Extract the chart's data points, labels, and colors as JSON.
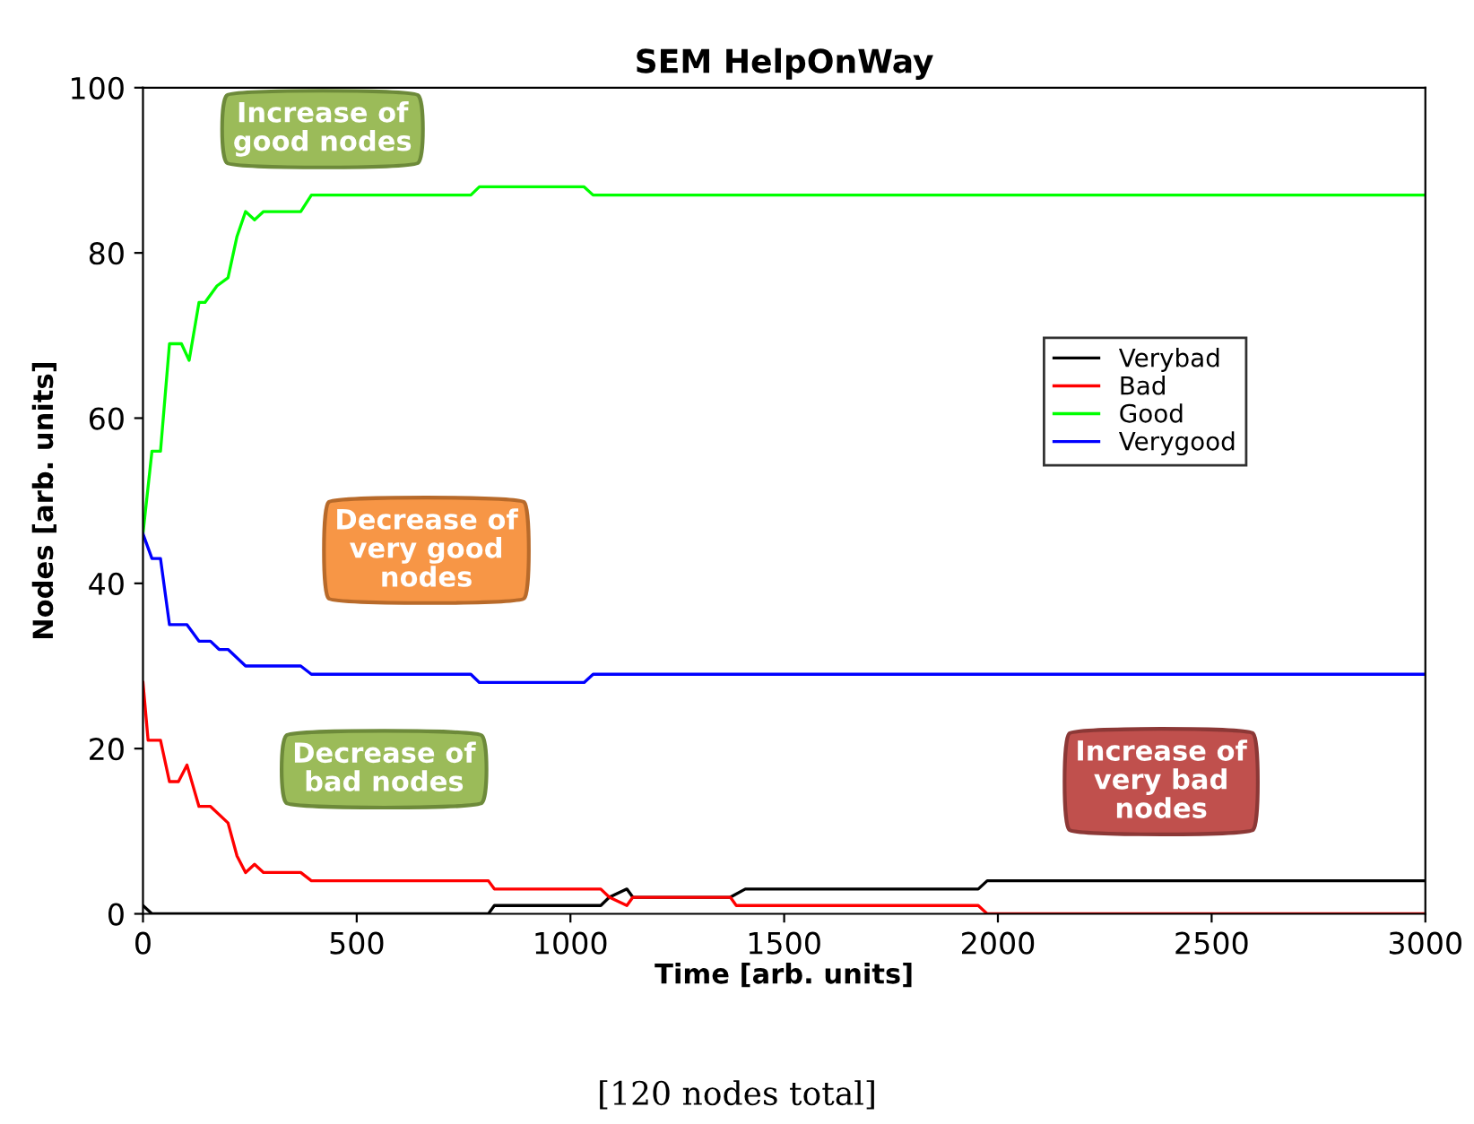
{
  "chart_data": {
    "type": "line",
    "title": "SEM HelpOnWay",
    "xlabel": "Time [arb. units]",
    "ylabel": "Nodes [arb. units]",
    "xlim": [
      0,
      3000
    ],
    "ylim": [
      0,
      100
    ],
    "xticks": [
      0,
      500,
      1000,
      1500,
      2000,
      2500,
      3000
    ],
    "yticks": [
      0,
      20,
      40,
      60,
      80,
      100
    ],
    "grid": false,
    "legend": "right",
    "marker": "none",
    "line_style": "solid",
    "series": [
      {
        "name": "Verybad",
        "color": "#000000",
        "x": [
          0,
          21,
          808,
          822,
          1071,
          1091,
          1132,
          1146,
          1374,
          1409,
          1954,
          1975,
          3000
        ],
        "values": [
          1,
          0,
          0,
          1,
          1,
          2,
          3,
          2,
          2,
          3,
          3,
          4,
          4
        ]
      },
      {
        "name": "Bad",
        "color": "#ff0000",
        "x": [
          0,
          12,
          41,
          62,
          83,
          103,
          131,
          158,
          199,
          220,
          240,
          261,
          282,
          369,
          394,
          808,
          822,
          1071,
          1091,
          1132,
          1146,
          1374,
          1388,
          1954,
          1975,
          3000
        ],
        "values": [
          28,
          21,
          21,
          16,
          16,
          18,
          13,
          13,
          11,
          7,
          5,
          6,
          5,
          5,
          4,
          4,
          3,
          3,
          2,
          1,
          2,
          2,
          1,
          1,
          0,
          0
        ]
      },
      {
        "name": "Good",
        "color": "#00ff00",
        "x": [
          0,
          21,
          41,
          62,
          90,
          108,
          131,
          145,
          173,
          199,
          220,
          240,
          261,
          282,
          369,
          394,
          767,
          787,
          1032,
          1053,
          3000
        ],
        "values": [
          46,
          56,
          56,
          69,
          69,
          67,
          74,
          74,
          76,
          77,
          82,
          85,
          84,
          85,
          85,
          87,
          87,
          88,
          88,
          87,
          87
        ]
      },
      {
        "name": "Verygood",
        "color": "#0000ff",
        "x": [
          0,
          21,
          41,
          62,
          103,
          131,
          158,
          178,
          199,
          240,
          369,
          394,
          767,
          787,
          1032,
          1053,
          3000
        ],
        "values": [
          46,
          43,
          43,
          35,
          35,
          33,
          33,
          32,
          32,
          30,
          30,
          29,
          29,
          28,
          28,
          29,
          29
        ]
      }
    ],
    "annotations": [
      "Increase of\ngood nodes",
      "Decrease of\nvery good\nnodes",
      "Decrease of\nbad nodes",
      "Increase of\nvery bad\nnodes",
      "[120 nodes total]"
    ]
  }
}
